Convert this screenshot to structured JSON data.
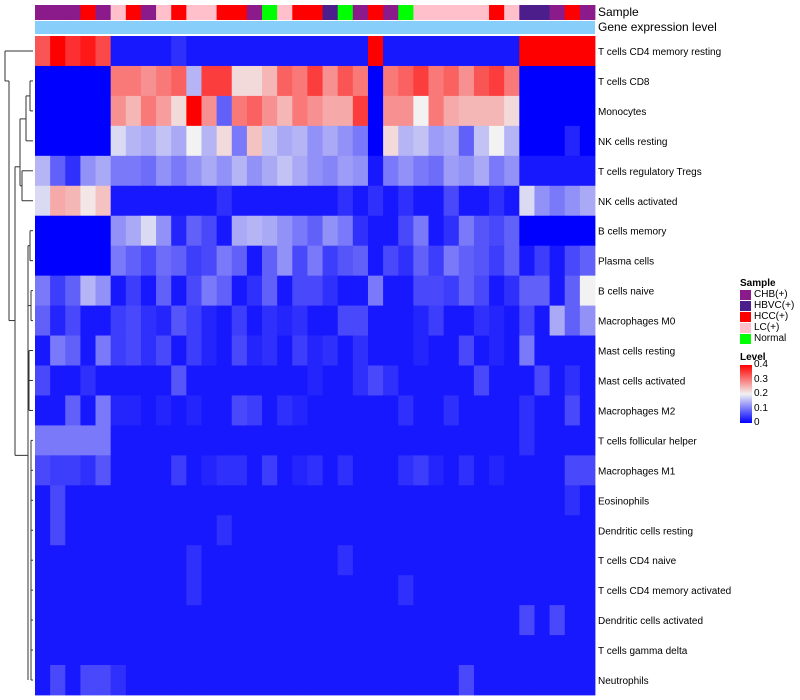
{
  "chart_data": {
    "type": "heatmap",
    "title": "",
    "annotation_labels": [
      "Sample",
      "Gene expression level"
    ],
    "sample_colors": {
      "CHB(+)": "#8B1A8B",
      "HBVC(+)": "#4B1E8C",
      "HCC(+)": "#FF0000",
      "LC(+)": "#FFC0CB",
      "Normal": "#00FF00"
    },
    "level_color": "#87CEFA",
    "samples": [
      "CHB(+)",
      "CHB(+)",
      "CHB(+)",
      "HCC(+)",
      "CHB(+)",
      "LC(+)",
      "HCC(+)",
      "CHB(+)",
      "LC(+)",
      "HCC(+)",
      "LC(+)",
      "LC(+)",
      "HCC(+)",
      "HCC(+)",
      "CHB(+)",
      "Normal",
      "LC(+)",
      "HCC(+)",
      "HCC(+)",
      "HBVC(+)",
      "Normal",
      "CHB(+)",
      "HCC(+)",
      "CHB(+)",
      "Normal",
      "LC(+)",
      "LC(+)",
      "LC(+)",
      "LC(+)",
      "LC(+)",
      "HCC(+)",
      "LC(+)",
      "HBVC(+)",
      "HBVC(+)",
      "CHB(+)",
      "HCC(+)",
      "CHB(+)"
    ],
    "rows": [
      "T cells CD4 memory resting",
      "T cells CD8",
      "Monocytes",
      "NK cells resting",
      "T cells regulatory  Tregs",
      "NK cells activated",
      "B cells memory",
      "Plasma cells",
      "B cells naive",
      "Macrophages M0",
      "Mast cells resting",
      "Mast cells activated",
      "Macrophages M2",
      "T cells follicular helper",
      "Macrophages M1",
      "Eosinophils",
      "Dendritic cells resting",
      "T cells CD4 naive",
      "T cells CD4 memory activated",
      "Dendritic cells activated",
      "T cells gamma delta",
      "Neutrophils"
    ],
    "values": [
      [
        0.33,
        0.4,
        0.36,
        0.38,
        0.34,
        0.02,
        0.02,
        0.02,
        0.02,
        0.04,
        0.02,
        0.02,
        0.02,
        0.02,
        0.02,
        0.02,
        0.02,
        0.02,
        0.02,
        0.02,
        0.02,
        0.02,
        0.4,
        0.02,
        0.02,
        0.02,
        0.02,
        0.02,
        0.02,
        0.02,
        0.02,
        0.02,
        0.4,
        0.4,
        0.4,
        0.4,
        0.4
      ],
      [
        0,
        0,
        0,
        0,
        0,
        0.3,
        0.3,
        0.28,
        0.3,
        0.32,
        0.15,
        0.35,
        0.35,
        0.22,
        0.22,
        0.25,
        0.32,
        0.3,
        0.35,
        0.28,
        0.33,
        0.3,
        0,
        0.3,
        0.32,
        0.35,
        0.3,
        0.32,
        0.28,
        0.33,
        0.35,
        0.3,
        0,
        0,
        0,
        0,
        0
      ],
      [
        0,
        0,
        0,
        0,
        0,
        0.28,
        0.25,
        0.3,
        0.27,
        0.22,
        0.4,
        0.28,
        0.08,
        0.3,
        0.32,
        0.28,
        0.25,
        0.3,
        0.28,
        0.26,
        0.26,
        0.35,
        0,
        0.28,
        0.28,
        0.2,
        0.3,
        0.26,
        0.25,
        0.25,
        0.25,
        0.22,
        0,
        0,
        0,
        0,
        0
      ],
      [
        0,
        0,
        0,
        0,
        0,
        0.18,
        0.15,
        0.14,
        0.16,
        0.14,
        0.2,
        0.15,
        0.22,
        0.1,
        0.24,
        0.16,
        0.14,
        0.15,
        0.12,
        0.14,
        0.12,
        0.1,
        0,
        0.22,
        0.15,
        0.16,
        0.13,
        0.14,
        0.08,
        0.16,
        0.2,
        0.15,
        0,
        0,
        0,
        0.03,
        0
      ],
      [
        0.15,
        0.08,
        0.04,
        0.12,
        0.14,
        0.1,
        0.1,
        0.09,
        0.12,
        0.1,
        0.12,
        0.14,
        0.12,
        0.15,
        0.12,
        0.14,
        0.16,
        0.14,
        0.12,
        0.11,
        0.13,
        0.12,
        0.02,
        0.1,
        0.12,
        0.1,
        0.09,
        0.13,
        0.12,
        0.14,
        0.1,
        0.12,
        0.02,
        0.02,
        0.02,
        0.02,
        0.02
      ],
      [
        0.18,
        0.26,
        0.25,
        0.21,
        0.24,
        0.02,
        0.02,
        0.02,
        0.02,
        0.02,
        0.02,
        0.02,
        0.04,
        0.02,
        0.02,
        0.02,
        0.02,
        0.02,
        0.02,
        0.02,
        0.04,
        0.02,
        0.04,
        0.02,
        0.04,
        0.02,
        0.02,
        0.06,
        0.02,
        0.02,
        0.04,
        0.02,
        0.18,
        0.12,
        0.1,
        0.12,
        0.14
      ],
      [
        0,
        0,
        0,
        0,
        0,
        0.12,
        0.14,
        0.18,
        0.12,
        0.03,
        0.08,
        0.06,
        0.02,
        0.14,
        0.15,
        0.14,
        0.12,
        0.1,
        0.08,
        0.12,
        0.1,
        0.04,
        0.02,
        0.02,
        0.06,
        0.1,
        0.02,
        0.04,
        0.1,
        0.07,
        0.06,
        0.08,
        0,
        0,
        0,
        0,
        0
      ],
      [
        0,
        0,
        0,
        0,
        0,
        0.1,
        0.08,
        0.06,
        0.09,
        0.08,
        0.05,
        0.06,
        0.1,
        0.08,
        0.02,
        0.08,
        0.12,
        0.06,
        0.1,
        0.05,
        0.07,
        0.08,
        0.02,
        0.06,
        0.04,
        0.08,
        0.05,
        0.1,
        0.08,
        0.07,
        0.05,
        0.08,
        0.02,
        0.05,
        0.02,
        0.06,
        0.08
      ],
      [
        0.1,
        0.05,
        0.08,
        0.15,
        0.12,
        0.02,
        0.05,
        0.02,
        0.08,
        0.02,
        0.06,
        0.1,
        0.08,
        0.02,
        0.04,
        0.08,
        0.02,
        0.06,
        0.06,
        0.04,
        0.02,
        0.02,
        0.1,
        0.02,
        0.02,
        0.06,
        0.06,
        0.05,
        0.08,
        0.06,
        0.02,
        0.04,
        0.08,
        0.08,
        0.02,
        0.08,
        0.2
      ],
      [
        0.08,
        0.03,
        0.06,
        0.02,
        0.02,
        0.05,
        0.06,
        0.04,
        0.03,
        0.07,
        0.05,
        0.03,
        0.02,
        0.05,
        0.02,
        0.04,
        0.03,
        0.04,
        0.02,
        0.02,
        0.06,
        0.06,
        0.02,
        0.02,
        0.02,
        0.03,
        0.05,
        0.02,
        0.02,
        0.04,
        0.03,
        0.02,
        0.06,
        0.02,
        0.14,
        0.08,
        0.12
      ],
      [
        0.02,
        0.1,
        0.08,
        0.02,
        0.1,
        0.05,
        0.06,
        0.04,
        0.06,
        0.02,
        0.05,
        0.03,
        0.02,
        0.06,
        0.03,
        0.04,
        0.02,
        0.05,
        0.03,
        0.04,
        0.02,
        0.04,
        0.02,
        0.02,
        0.02,
        0.03,
        0.02,
        0.02,
        0.06,
        0.02,
        0.03,
        0.02,
        0.1,
        0.02,
        0.02,
        0.02,
        0.02
      ],
      [
        0.06,
        0.02,
        0.02,
        0.04,
        0.02,
        0.02,
        0.02,
        0.02,
        0.02,
        0.07,
        0.02,
        0.02,
        0.02,
        0.02,
        0.02,
        0.02,
        0.02,
        0.02,
        0.03,
        0.02,
        0.02,
        0.04,
        0.06,
        0.04,
        0.02,
        0.02,
        0.02,
        0.02,
        0.02,
        0.06,
        0.02,
        0.02,
        0.02,
        0.06,
        0.02,
        0.04,
        0.02
      ],
      [
        0.02,
        0.02,
        0.08,
        0.02,
        0.1,
        0.03,
        0.03,
        0.02,
        0.03,
        0.02,
        0.03,
        0.02,
        0.02,
        0.06,
        0.05,
        0.02,
        0.04,
        0.03,
        0.02,
        0.02,
        0.02,
        0.02,
        0.02,
        0.02,
        0.04,
        0.02,
        0.02,
        0.04,
        0.02,
        0.02,
        0.02,
        0.02,
        0.04,
        0.02,
        0.02,
        0.06,
        0.02
      ],
      [
        0.1,
        0.1,
        0.1,
        0.1,
        0.1,
        0.02,
        0.02,
        0.02,
        0.02,
        0.02,
        0.02,
        0.02,
        0.02,
        0.02,
        0.02,
        0.02,
        0.02,
        0.02,
        0.02,
        0.02,
        0.02,
        0.02,
        0.02,
        0.02,
        0.02,
        0.02,
        0.02,
        0.02,
        0.02,
        0.02,
        0.02,
        0.02,
        0.04,
        0.02,
        0.02,
        0.02,
        0.02
      ],
      [
        0.06,
        0.05,
        0.05,
        0.04,
        0.07,
        0.02,
        0.02,
        0.02,
        0.02,
        0.05,
        0.02,
        0.03,
        0.04,
        0.04,
        0.02,
        0.05,
        0.02,
        0.03,
        0.04,
        0.02,
        0.04,
        0.02,
        0.02,
        0.02,
        0.04,
        0.05,
        0.03,
        0.02,
        0.04,
        0.02,
        0.03,
        0.02,
        0.02,
        0.02,
        0.02,
        0.06,
        0.06
      ],
      [
        0.02,
        0.06,
        0.02,
        0.02,
        0.02,
        0.02,
        0.02,
        0.02,
        0.02,
        0.02,
        0.02,
        0.02,
        0.02,
        0.02,
        0.02,
        0.02,
        0.02,
        0.02,
        0.02,
        0.02,
        0.02,
        0.02,
        0.02,
        0.02,
        0.02,
        0.02,
        0.02,
        0.02,
        0.02,
        0.02,
        0.02,
        0.02,
        0.02,
        0.02,
        0.02,
        0.04,
        0.02
      ],
      [
        0.02,
        0.06,
        0.02,
        0.02,
        0.02,
        0.02,
        0.02,
        0.02,
        0.02,
        0.02,
        0.02,
        0.02,
        0.04,
        0.02,
        0.02,
        0.02,
        0.02,
        0.02,
        0.02,
        0.02,
        0.02,
        0.02,
        0.02,
        0.02,
        0.02,
        0.02,
        0.02,
        0.02,
        0.02,
        0.02,
        0.02,
        0.02,
        0.02,
        0.02,
        0.02,
        0.02,
        0.02
      ],
      [
        0.02,
        0.02,
        0.02,
        0.02,
        0.02,
        0.02,
        0.02,
        0.02,
        0.02,
        0.02,
        0.04,
        0.02,
        0.02,
        0.02,
        0.02,
        0.02,
        0.02,
        0.02,
        0.02,
        0.02,
        0.04,
        0.02,
        0.02,
        0.02,
        0.02,
        0.02,
        0.02,
        0.02,
        0.02,
        0.02,
        0.02,
        0.02,
        0.02,
        0.02,
        0.02,
        0.02,
        0.02
      ],
      [
        0.02,
        0.02,
        0.02,
        0.02,
        0.02,
        0.02,
        0.02,
        0.02,
        0.02,
        0.02,
        0.04,
        0.02,
        0.02,
        0.02,
        0.02,
        0.02,
        0.02,
        0.02,
        0.02,
        0.02,
        0.02,
        0.02,
        0.02,
        0.02,
        0.04,
        0.02,
        0.02,
        0.02,
        0.02,
        0.02,
        0.02,
        0.02,
        0.02,
        0.02,
        0.02,
        0.02,
        0.02
      ],
      [
        0.02,
        0.02,
        0.02,
        0.02,
        0.02,
        0.02,
        0.02,
        0.02,
        0.02,
        0.02,
        0.02,
        0.02,
        0.02,
        0.02,
        0.02,
        0.02,
        0.02,
        0.02,
        0.02,
        0.02,
        0.02,
        0.02,
        0.02,
        0.02,
        0.02,
        0.02,
        0.02,
        0.02,
        0.02,
        0.02,
        0.02,
        0.02,
        0.06,
        0.02,
        0.06,
        0.02,
        0.02
      ],
      [
        0.02,
        0.02,
        0.02,
        0.02,
        0.02,
        0.02,
        0.02,
        0.02,
        0.02,
        0.02,
        0.02,
        0.02,
        0.02,
        0.02,
        0.02,
        0.02,
        0.02,
        0.02,
        0.02,
        0.02,
        0.02,
        0.02,
        0.02,
        0.02,
        0.02,
        0.02,
        0.02,
        0.02,
        0.02,
        0.02,
        0.02,
        0.02,
        0.02,
        0.02,
        0.02,
        0.02,
        0.02
      ],
      [
        0.02,
        0.06,
        0.02,
        0.06,
        0.06,
        0.04,
        0.02,
        0.02,
        0.02,
        0.02,
        0.02,
        0.02,
        0.02,
        0.02,
        0.02,
        0.02,
        0.02,
        0.02,
        0.02,
        0.02,
        0.02,
        0.02,
        0.02,
        0.02,
        0.02,
        0.02,
        0.02,
        0.02,
        0.06,
        0.02,
        0.02,
        0.02,
        0.02,
        0.02,
        0.02,
        0.02,
        0.02
      ]
    ],
    "color_scale": {
      "min": 0,
      "max": 0.4,
      "low": "#0000FF",
      "mid": "#F2F2F2",
      "high": "#FF0000"
    },
    "legend": {
      "sample_title": "Sample",
      "sample_entries": [
        "CHB(+)",
        "HBVC(+)",
        "HCC(+)",
        "LC(+)",
        "Normal"
      ],
      "level_title": "Level",
      "level_ticks": [
        "0.4",
        "0.3",
        "0.2",
        "0.1",
        "0"
      ]
    }
  }
}
